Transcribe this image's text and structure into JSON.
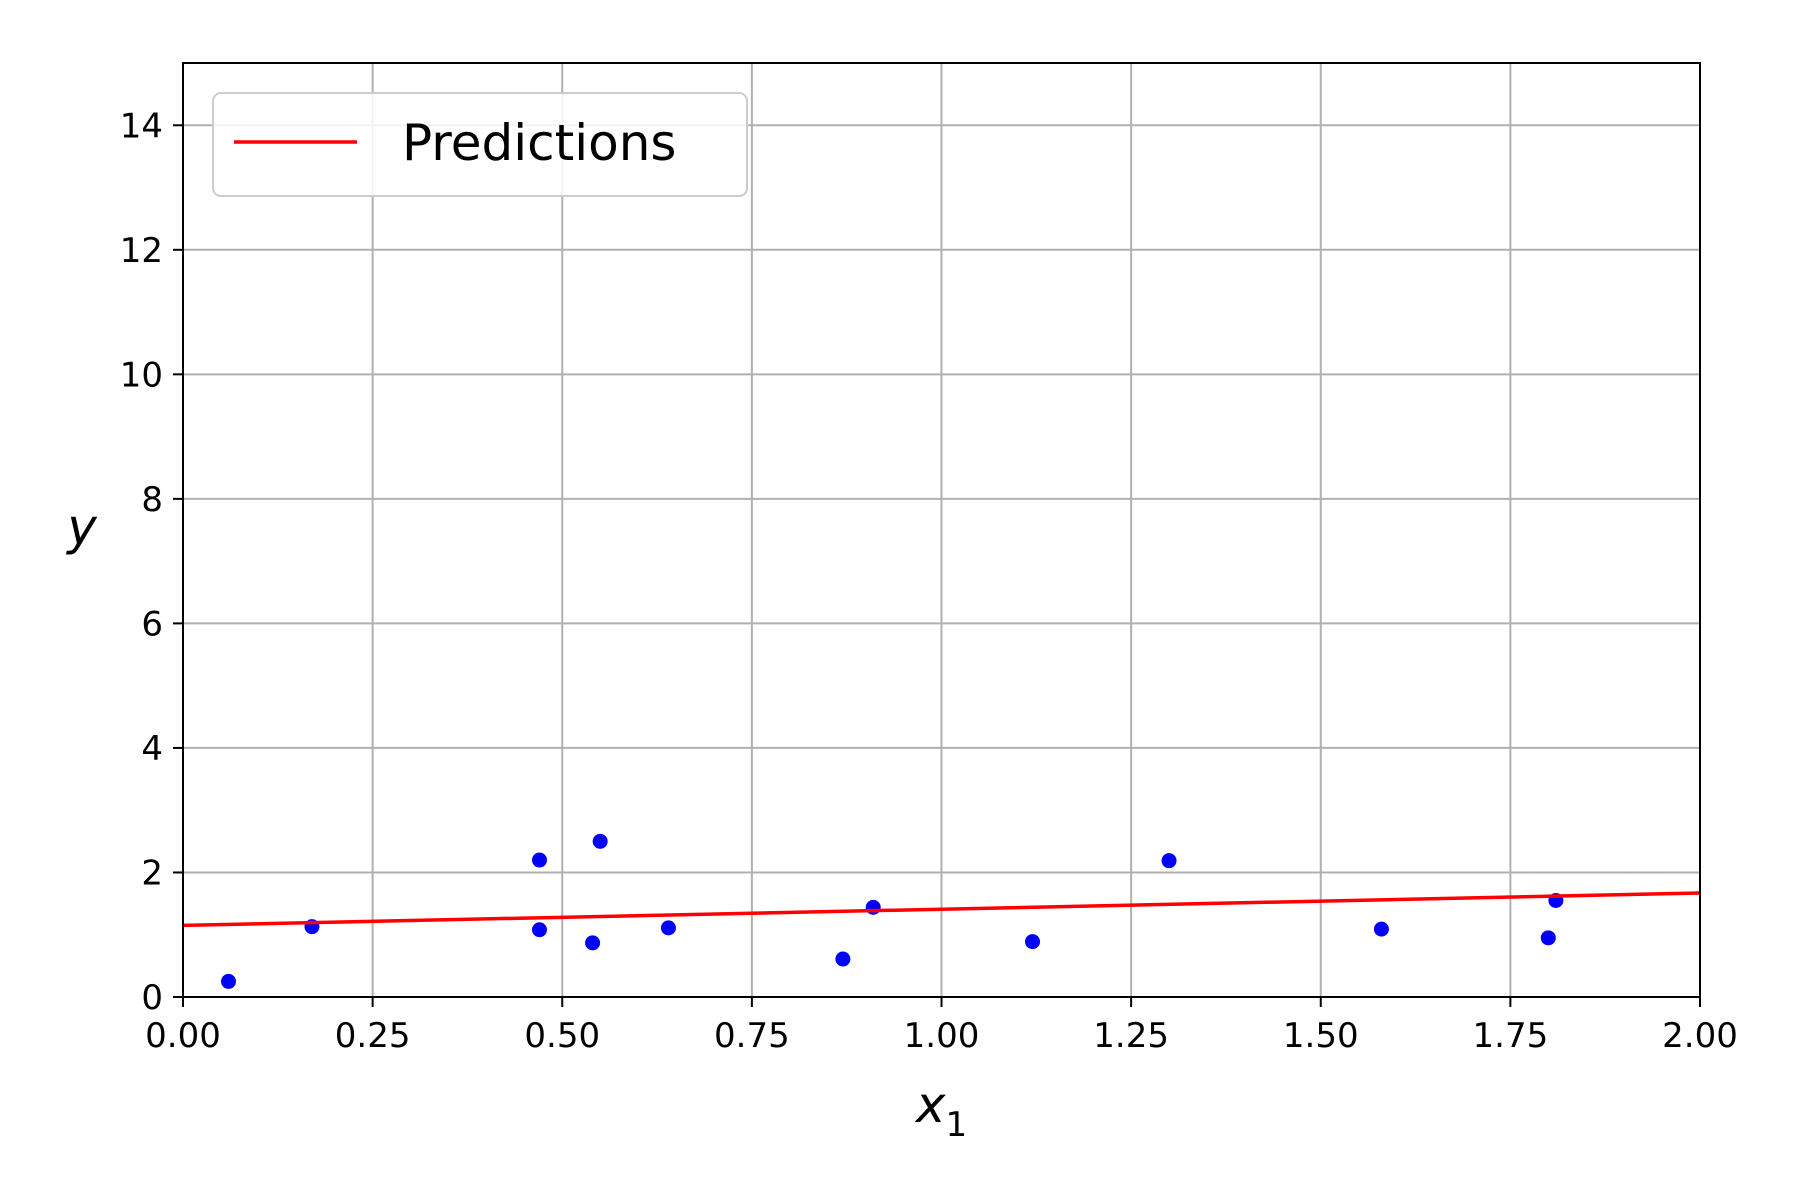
{
  "chart_data": {
    "type": "scatter",
    "xlabel": "x",
    "xlabel_subscript": "1",
    "ylabel": "y",
    "xlim": [
      0,
      2
    ],
    "ylim": [
      0,
      15
    ],
    "xticks": [
      "0.00",
      "0.25",
      "0.50",
      "0.75",
      "1.00",
      "1.25",
      "1.50",
      "1.75",
      "2.00"
    ],
    "yticks": [
      "0",
      "2",
      "4",
      "6",
      "8",
      "10",
      "12",
      "14"
    ],
    "grid": true,
    "legend": {
      "placement": "top-left",
      "entries": [
        "Predictions"
      ]
    },
    "series": [
      {
        "kind": "points",
        "color": "#0000ff",
        "x": [
          0.06,
          0.17,
          0.47,
          0.47,
          0.54,
          0.55,
          0.64,
          0.87,
          0.91,
          1.12,
          1.3,
          1.58,
          1.8,
          1.81
        ],
        "y": [
          0.25,
          1.13,
          2.2,
          1.08,
          0.87,
          2.5,
          1.11,
          0.61,
          1.44,
          0.89,
          2.19,
          1.09,
          0.95,
          1.55
        ]
      },
      {
        "name": "Predictions",
        "kind": "line",
        "color": "#ff0000",
        "x": [
          0,
          2
        ],
        "y": [
          1.15,
          1.67
        ]
      }
    ]
  }
}
